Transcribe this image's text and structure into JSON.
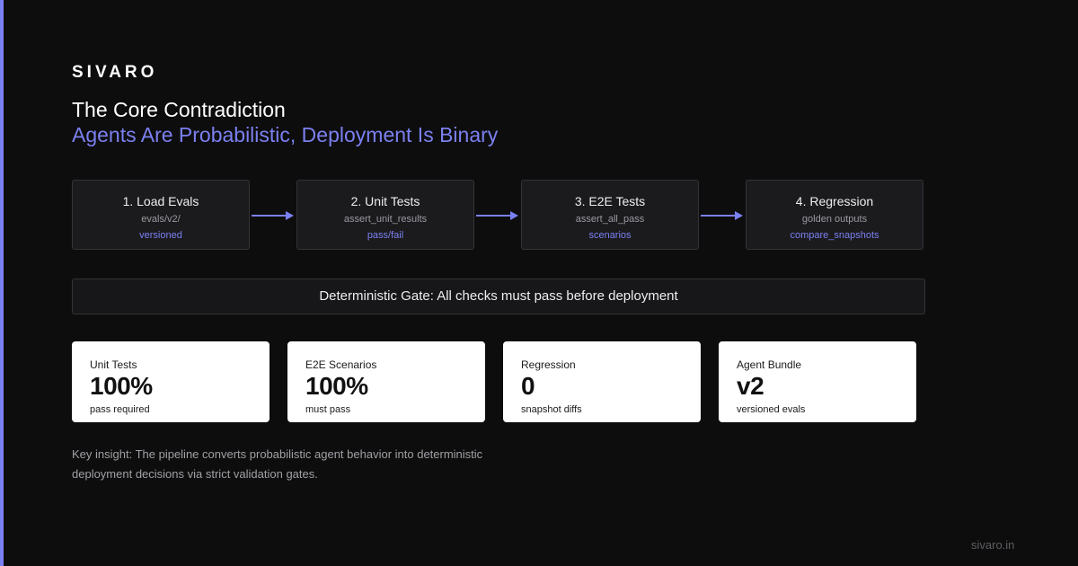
{
  "brand": "SIVARO",
  "title": "The Core Contradiction",
  "subtitle": "Agents Are Probabilistic, Deployment Is Binary",
  "steps": [
    {
      "title": "1. Load Evals",
      "sub": "evals/v2/",
      "tag": "versioned"
    },
    {
      "title": "2. Unit Tests",
      "sub": "assert_unit_results",
      "tag": "pass/fail"
    },
    {
      "title": "3. E2E Tests",
      "sub": "assert_all_pass",
      "tag": "scenarios"
    },
    {
      "title": "4. Regression",
      "sub": "golden outputs",
      "tag": "compare_snapshots"
    }
  ],
  "gate": "Deterministic Gate: All checks must pass before deployment",
  "cards": [
    {
      "label": "Unit Tests",
      "value": "100%",
      "caption": "pass required"
    },
    {
      "label": "E2E Scenarios",
      "value": "100%",
      "caption": "must pass"
    },
    {
      "label": "Regression",
      "value": "0",
      "caption": "snapshot diffs"
    },
    {
      "label": "Agent Bundle",
      "value": "v2",
      "caption": "versioned evals"
    }
  ],
  "insight": "Key insight: The pipeline converts probabilistic agent behavior into deterministic deployment decisions via strict validation gates.",
  "footer": "sivaro.in",
  "colors": {
    "accent": "#7b80f0",
    "background": "#0d0d0d",
    "card": "#ffffff",
    "step_bg": "#1b1b1e"
  }
}
